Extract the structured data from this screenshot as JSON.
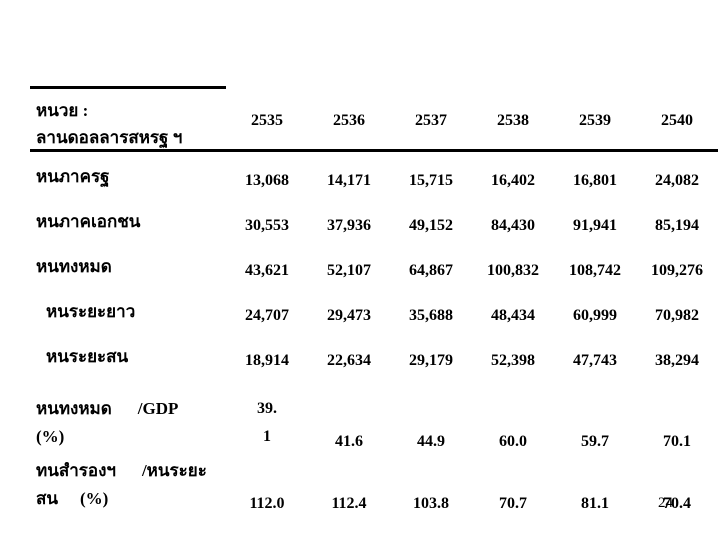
{
  "slide": {
    "background": "#ffffff",
    "text_color": "#000000",
    "page_number": "24"
  },
  "table": {
    "unit_header": {
      "line1": "หนวย  :",
      "line2": "ลานดอลลารสหรฐ ฯ"
    },
    "years": [
      "2535",
      "2536",
      "2537",
      "2538",
      "2539",
      "2540"
    ],
    "rows": [
      {
        "label": "หนภาครฐ",
        "values": [
          "13,068",
          "14,171",
          "15,715",
          "16,402",
          "16,801",
          "24,082"
        ]
      },
      {
        "label": "หนภาคเอกชน",
        "values": [
          "30,553",
          "37,936",
          "49,152",
          "84,430",
          "91,941",
          "85,194"
        ]
      },
      {
        "label": "หนทงหมด",
        "values": [
          "43,621",
          "52,107",
          "64,867",
          "100,832",
          "108,742",
          "109,276"
        ]
      },
      {
        "label": "หนระยะยาว",
        "indent": true,
        "values": [
          "24,707",
          "29,473",
          "35,688",
          "48,434",
          "60,999",
          "70,982"
        ]
      },
      {
        "label": "หนระยะสน",
        "indent": true,
        "values": [
          "18,914",
          "22,634",
          "29,179",
          "52,398",
          "47,743",
          "38,294"
        ]
      },
      {
        "label_parts": [
          "หนทงหมด",
          "/GDP"
        ],
        "label_line2": "(%)",
        "first_value_lines": [
          "39.",
          "1"
        ],
        "values": [
          "41.6",
          "44.9",
          "60.0",
          "59.7",
          "70.1"
        ]
      },
      {
        "label_parts": [
          "ทนสำรองฯ",
          "/หนระยะ"
        ],
        "label_line2_parts": [
          "สน",
          "(%)"
        ],
        "values": [
          "112.0",
          "112.4",
          "103.8",
          "70.7",
          "81.1",
          "70.4"
        ]
      }
    ]
  },
  "chart_data": {
    "type": "table",
    "unit_note": "หนวย : ลานดอลลารสหรฐ ฯ",
    "columns": [
      "2535",
      "2536",
      "2537",
      "2538",
      "2539",
      "2540"
    ],
    "rows": [
      {
        "label": "หนภาครฐ",
        "values": [
          13068,
          14171,
          15715,
          16402,
          16801,
          24082
        ]
      },
      {
        "label": "หนภาคเอกชน",
        "values": [
          30553,
          37936,
          49152,
          84430,
          91941,
          85194
        ]
      },
      {
        "label": "หนทงหมด",
        "values": [
          43621,
          52107,
          64867,
          100832,
          108742,
          109276
        ]
      },
      {
        "label": "หนระยะยาว",
        "values": [
          24707,
          29473,
          35688,
          48434,
          60999,
          70982
        ]
      },
      {
        "label": "หนระยะสน",
        "values": [
          18914,
          22634,
          29179,
          52398,
          47743,
          38294
        ]
      },
      {
        "label": "หนทงหมด /GDP (%)",
        "values": [
          39.1,
          41.6,
          44.9,
          60.0,
          59.7,
          70.1
        ]
      },
      {
        "label": "ทนสำรองฯ /หนระยะสน (%)",
        "values": [
          112.0,
          112.4,
          103.8,
          70.7,
          81.1,
          70.4
        ]
      }
    ],
    "page_number": 24
  }
}
